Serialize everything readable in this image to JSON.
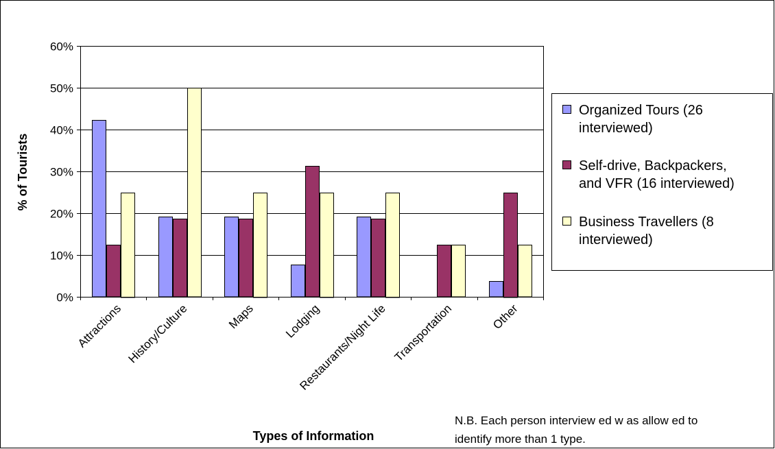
{
  "chart_data": {
    "type": "bar",
    "xlabel": "Types of Information",
    "ylabel": "% of Tourists",
    "ylim": [
      0,
      60
    ],
    "yticks": [
      "0%",
      "10%",
      "20%",
      "30%",
      "40%",
      "50%",
      "60%"
    ],
    "grid": true,
    "legend_position": "right",
    "categories": [
      "Attractions",
      "History/Culture",
      "Maps",
      "Lodging",
      "Restaurants/Night Life",
      "Transportation",
      "Other"
    ],
    "series": [
      {
        "name": "Organized Tours (26 interviewed)",
        "legend_lines": [
          "Organized Tours (26",
          "interviewed)"
        ],
        "color": "#9999ff",
        "values": [
          42.3,
          19.2,
          19.2,
          7.7,
          19.2,
          0,
          3.8
        ]
      },
      {
        "name": "Self-drive, Backpackers, and VFR (16 interviewed)",
        "legend_lines": [
          "Self-drive, Backpackers,",
          "and VFR (16 interviewed)"
        ],
        "color": "#993366",
        "values": [
          12.5,
          18.75,
          18.75,
          31.25,
          18.75,
          12.5,
          25
        ]
      },
      {
        "name": "Business Travellers (8 interviewed)",
        "legend_lines": [
          "Business Travellers (8",
          "interviewed)"
        ],
        "color": "#ffffcc",
        "values": [
          25,
          50,
          25,
          25,
          25,
          12.5,
          12.5
        ]
      }
    ]
  },
  "note": {
    "line1": "N.B. Each person interview ed w as allow ed to",
    "line2": "identify more than 1 type."
  }
}
